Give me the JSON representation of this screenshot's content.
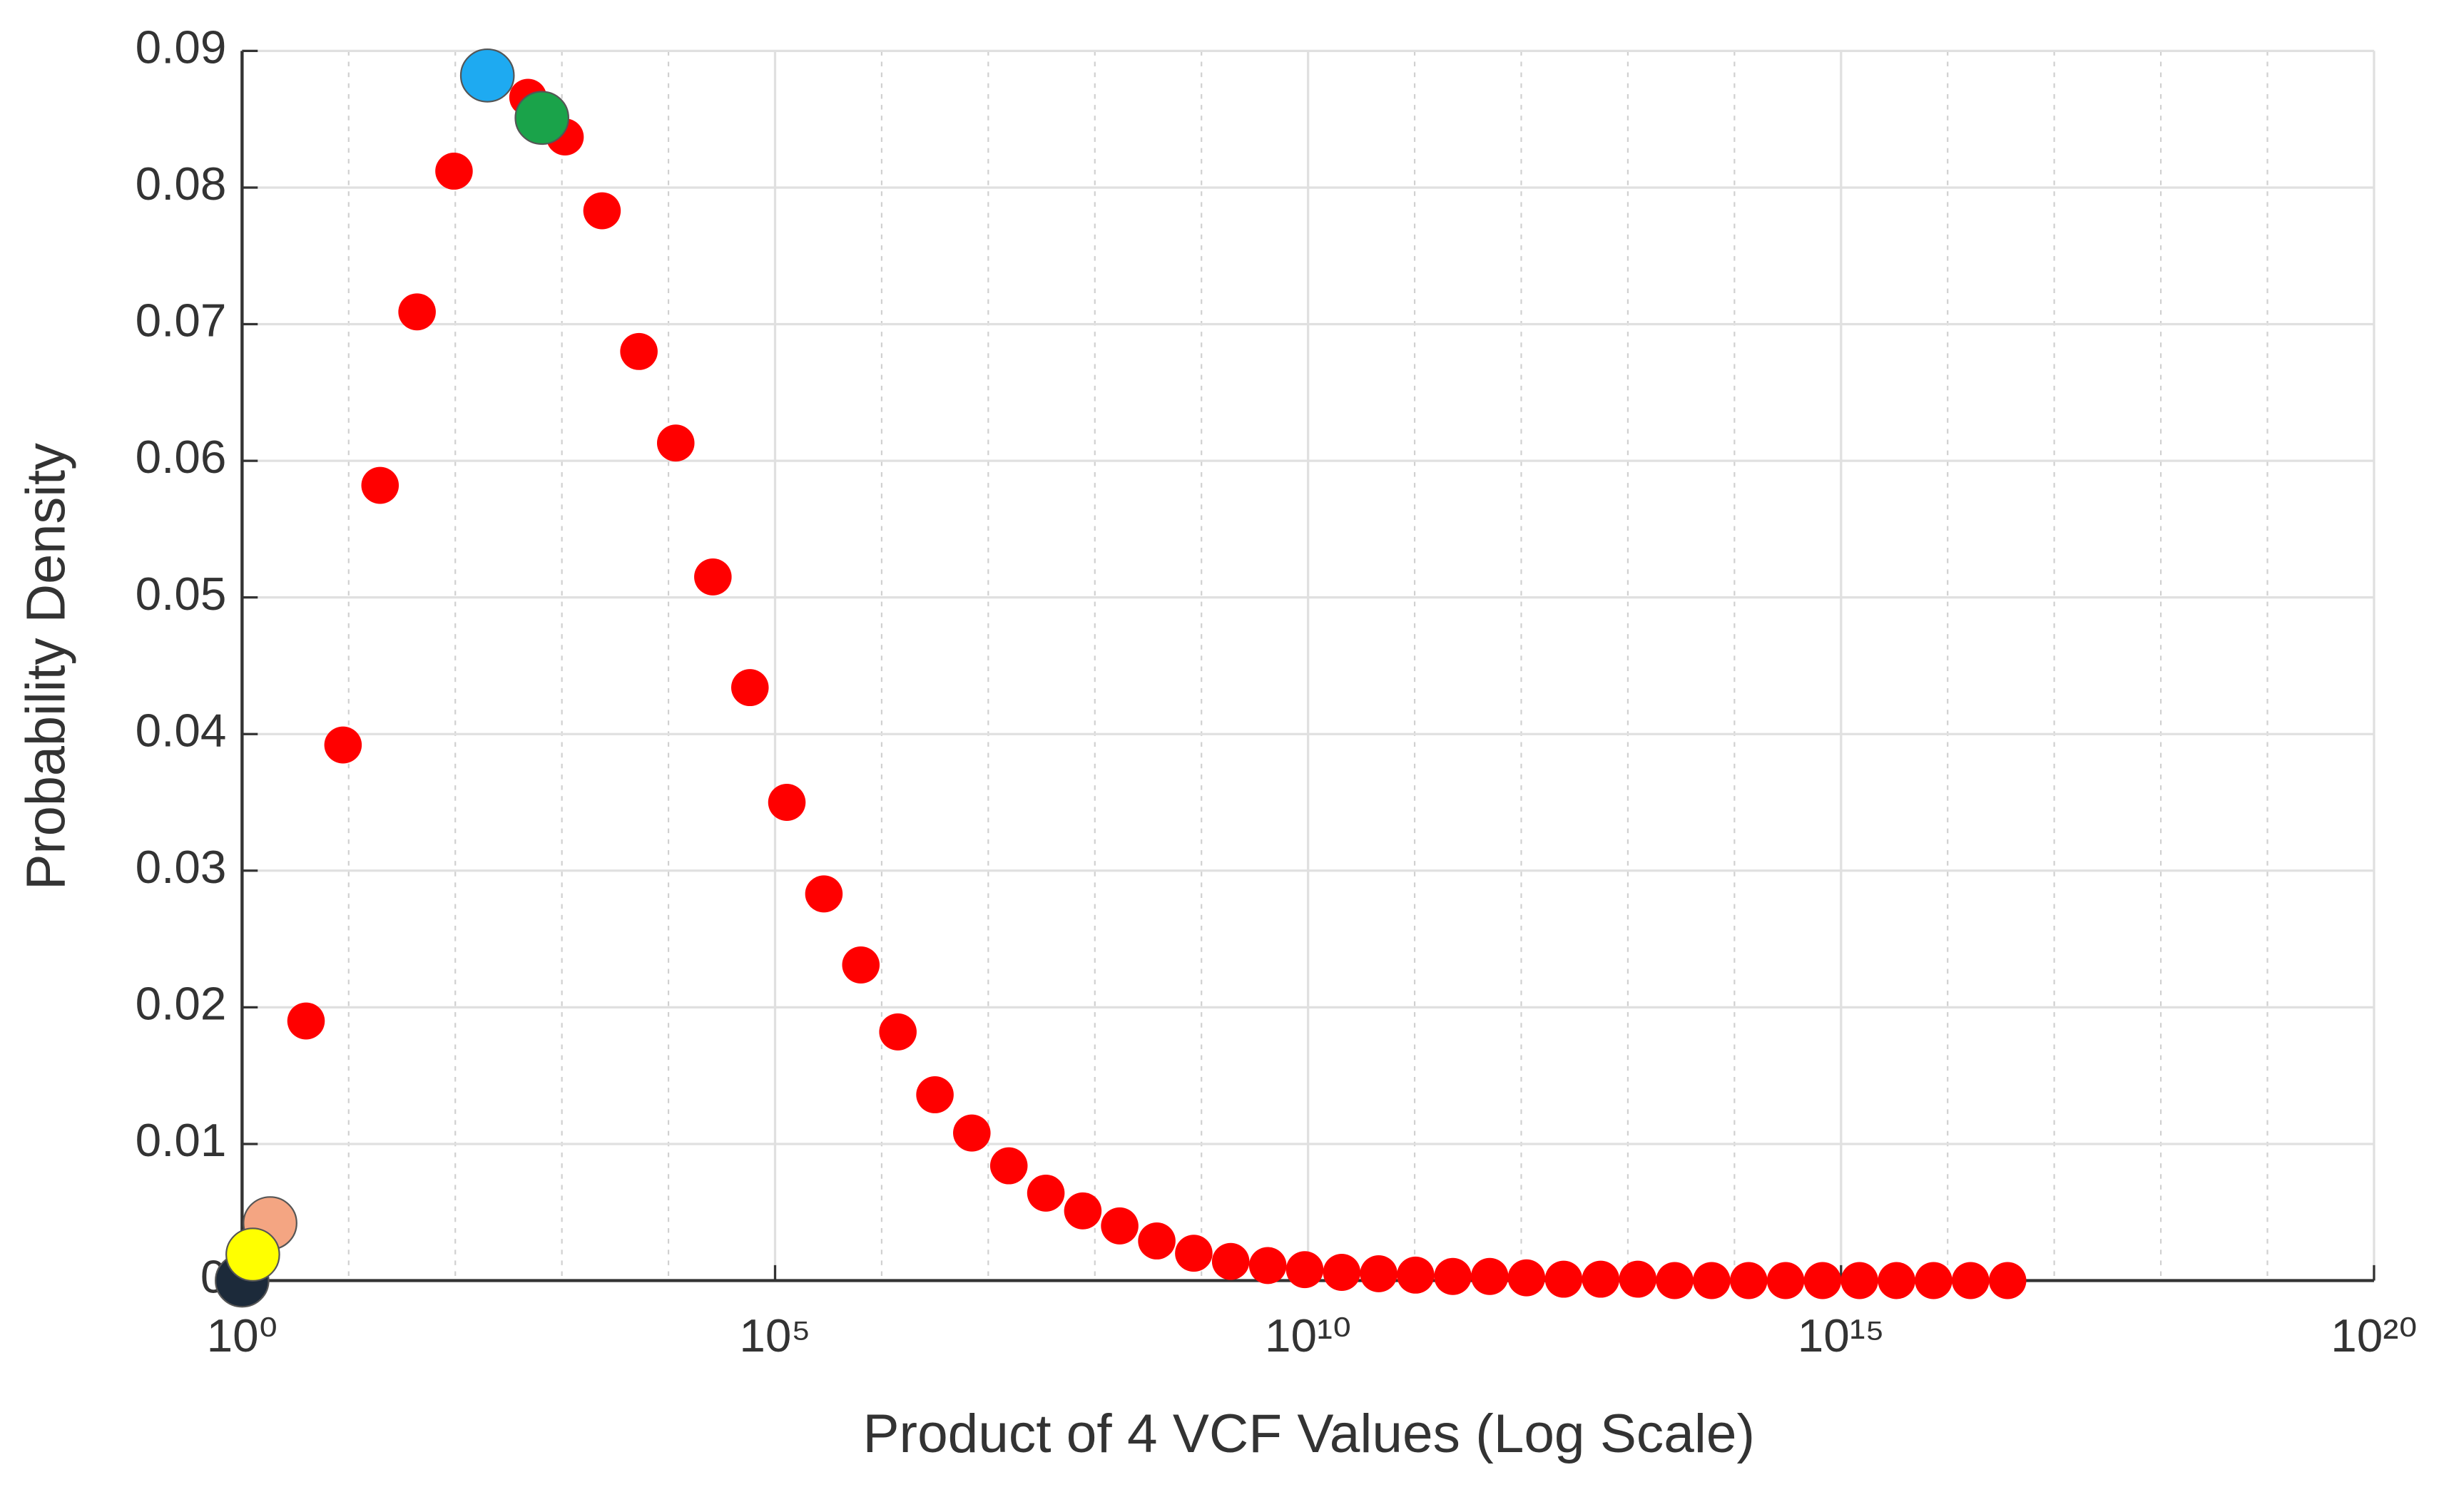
{
  "chart_data": {
    "type": "scatter",
    "xlabel": "Product of 4 VCF Values (Log Scale)",
    "ylabel": "Probability Density",
    "xscale": "log",
    "grid": true,
    "minor_grid": true,
    "xlim": [
      1,
      1e+20
    ],
    "xticks": [
      {
        "value": 1,
        "label": "10⁰"
      },
      {
        "value": 100000.0,
        "label": "10⁵"
      },
      {
        "value": 10000000000.0,
        "label": "10¹⁰"
      },
      {
        "value": 1000000000000000.0,
        "label": "10¹⁵"
      },
      {
        "value": 1e+20,
        "label": "10²⁰"
      }
    ],
    "ylim": [
      0,
      0.09
    ],
    "yticks": [
      0,
      0.01,
      0.02,
      0.03,
      0.04,
      0.05,
      0.06,
      0.07,
      0.08,
      0.09
    ],
    "series": [
      {
        "color": "#ff0000",
        "x": [
          3.98,
          8.85,
          19.7,
          43.8,
          97.3,
          216,
          481,
          1070,
          2380,
          5280,
          11700,
          26100,
          58100,
          129000,
          287000,
          638000,
          1420000.0,
          3160000.0,
          7010000.0,
          15600000.0,
          34700000.0,
          77100000.0,
          171000000.0,
          381000000.0,
          847000000.0,
          1880000000.0,
          4190000000.0,
          9310000000.0,
          20700000000.0,
          46000000000.0,
          102000000000.0,
          228000000000.0,
          506000000000.0,
          1120000000000.0,
          2500000000000.0,
          5560000000000.0,
          12400000000000.0,
          27500000000000.0,
          61100000000000.0,
          136000000000000.0,
          302000000000000.0,
          671000000000000.0,
          1490000000000000.0,
          3320000000000000.0,
          7380000000000000.0,
          1.64e+16,
          3.65e+16
        ],
        "values": [
          0.019,
          0.0392,
          0.0582,
          0.0709,
          0.0812,
          0.0878,
          0.0866,
          0.0837,
          0.0783,
          0.068,
          0.0613,
          0.0515,
          0.0434,
          0.035,
          0.0283,
          0.0231,
          0.0182,
          0.0136,
          0.0108,
          0.0084,
          0.0064,
          0.0051,
          0.004,
          0.0029,
          0.002,
          0.0014,
          0.0011,
          0.0008,
          0.0006,
          0.0005,
          0.0004,
          0.0003,
          0.0003,
          0.0002,
          0.0001,
          0.0001,
          0.0001,
          0,
          0,
          0,
          0,
          0,
          0,
          0,
          0,
          0,
          0
        ]
      },
      {
        "color": "#1c2a3a",
        "x": [
          1
        ],
        "values": [
          0
        ]
      },
      {
        "color": "#f4a582",
        "x": [
          1.83
        ],
        "values": [
          0.0042
        ]
      },
      {
        "color": "#ffff00",
        "x": [
          1.26
        ],
        "values": [
          0.0019
        ]
      },
      {
        "color": "#1eaaf1",
        "x": [
          200
        ],
        "values": [
          0.0882
        ]
      },
      {
        "color": "#1aa34a",
        "x": [
          650
        ],
        "values": [
          0.0851
        ]
      }
    ]
  }
}
